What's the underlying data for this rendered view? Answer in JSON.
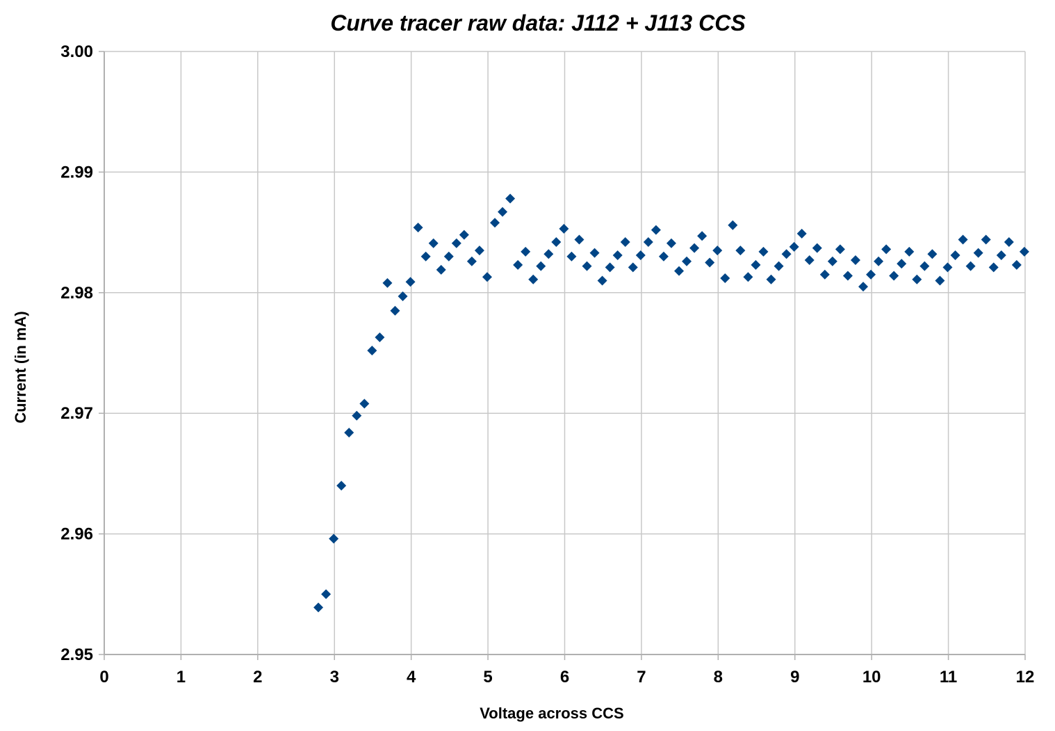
{
  "chart_data": {
    "type": "scatter",
    "title": "Curve tracer raw data: J112 + J113 CCS",
    "xlabel": "Voltage across CCS",
    "ylabel": "Current (in mA)",
    "xlim": [
      0,
      12
    ],
    "ylim": [
      2.95,
      3.0
    ],
    "x_ticks": [
      "0",
      "1",
      "2",
      "3",
      "4",
      "5",
      "6",
      "7",
      "8",
      "9",
      "10",
      "11",
      "12"
    ],
    "y_ticks": [
      "2.95",
      "2.96",
      "2.97",
      "2.98",
      "2.99",
      "3.00"
    ],
    "grid": true,
    "legend": "none",
    "marker": "diamond",
    "color": "#004586",
    "series": [
      {
        "points": [
          [
            2.79,
            2.9539
          ],
          [
            2.89,
            2.955
          ],
          [
            2.99,
            2.9596
          ],
          [
            3.09,
            2.964
          ],
          [
            3.19,
            2.9684
          ],
          [
            3.29,
            2.9698
          ],
          [
            3.39,
            2.9708
          ],
          [
            3.49,
            2.9752
          ],
          [
            3.59,
            2.9763
          ],
          [
            3.69,
            2.9808
          ],
          [
            3.79,
            2.9785
          ],
          [
            3.89,
            2.9797
          ],
          [
            3.99,
            2.9809
          ],
          [
            4.09,
            2.9854
          ],
          [
            4.19,
            2.983
          ],
          [
            4.29,
            2.9841
          ],
          [
            4.39,
            2.9819
          ],
          [
            4.49,
            2.983
          ],
          [
            4.59,
            2.9841
          ],
          [
            4.69,
            2.9848
          ],
          [
            4.79,
            2.9826
          ],
          [
            4.89,
            2.9835
          ],
          [
            4.99,
            2.9813
          ],
          [
            5.09,
            2.9858
          ],
          [
            5.19,
            2.9867
          ],
          [
            5.29,
            2.9878
          ],
          [
            5.39,
            2.9823
          ],
          [
            5.49,
            2.9834
          ],
          [
            5.59,
            2.9811
          ],
          [
            5.69,
            2.9822
          ],
          [
            5.79,
            2.9832
          ],
          [
            5.89,
            2.9842
          ],
          [
            5.99,
            2.9853
          ],
          [
            6.09,
            2.983
          ],
          [
            6.19,
            2.9844
          ],
          [
            6.29,
            2.9822
          ],
          [
            6.39,
            2.9833
          ],
          [
            6.49,
            2.981
          ],
          [
            6.59,
            2.9821
          ],
          [
            6.69,
            2.9831
          ],
          [
            6.79,
            2.9842
          ],
          [
            6.89,
            2.9821
          ],
          [
            6.99,
            2.9831
          ],
          [
            7.09,
            2.9842
          ],
          [
            7.19,
            2.9852
          ],
          [
            7.29,
            2.983
          ],
          [
            7.39,
            2.9841
          ],
          [
            7.49,
            2.9818
          ],
          [
            7.59,
            2.9826
          ],
          [
            7.69,
            2.9837
          ],
          [
            7.79,
            2.9847
          ],
          [
            7.89,
            2.9825
          ],
          [
            7.99,
            2.9835
          ],
          [
            8.09,
            2.9812
          ],
          [
            8.19,
            2.9856
          ],
          [
            8.29,
            2.9835
          ],
          [
            8.39,
            2.9813
          ],
          [
            8.49,
            2.9823
          ],
          [
            8.59,
            2.9834
          ],
          [
            8.69,
            2.9811
          ],
          [
            8.79,
            2.9822
          ],
          [
            8.89,
            2.9832
          ],
          [
            8.99,
            2.9838
          ],
          [
            9.09,
            2.9849
          ],
          [
            9.19,
            2.9827
          ],
          [
            9.29,
            2.9837
          ],
          [
            9.39,
            2.9815
          ],
          [
            9.49,
            2.9826
          ],
          [
            9.59,
            2.9836
          ],
          [
            9.69,
            2.9814
          ],
          [
            9.79,
            2.9827
          ],
          [
            9.89,
            2.9805
          ],
          [
            9.99,
            2.9815
          ],
          [
            10.09,
            2.9826
          ],
          [
            10.19,
            2.9836
          ],
          [
            10.29,
            2.9814
          ],
          [
            10.39,
            2.9824
          ],
          [
            10.49,
            2.9834
          ],
          [
            10.59,
            2.9811
          ],
          [
            10.69,
            2.9822
          ],
          [
            10.79,
            2.9832
          ],
          [
            10.89,
            2.981
          ],
          [
            10.99,
            2.9821
          ],
          [
            11.09,
            2.9831
          ],
          [
            11.19,
            2.9844
          ],
          [
            11.29,
            2.9822
          ],
          [
            11.39,
            2.9833
          ],
          [
            11.49,
            2.9844
          ],
          [
            11.59,
            2.9821
          ],
          [
            11.69,
            2.9831
          ],
          [
            11.79,
            2.9842
          ],
          [
            11.89,
            2.9823
          ],
          [
            11.99,
            2.9834
          ]
        ]
      }
    ]
  }
}
